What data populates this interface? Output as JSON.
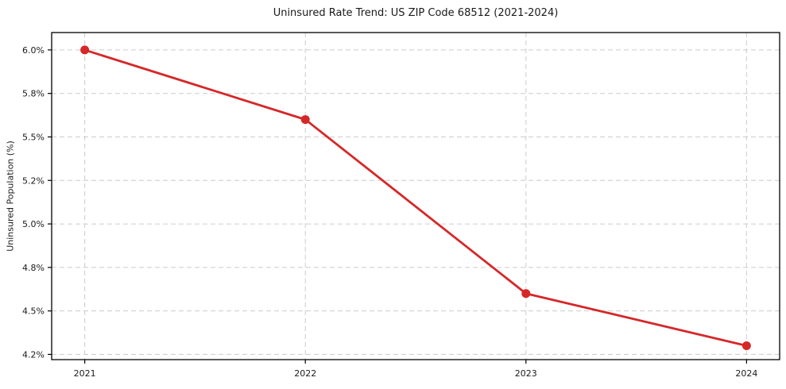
{
  "chart_data": {
    "type": "line",
    "title": "Uninsured Rate Trend: US ZIP Code 68512 (2021-2024)",
    "xlabel": "",
    "ylabel": "Uninsured Population (%)",
    "x": [
      2021,
      2022,
      2023,
      2024
    ],
    "series": [
      {
        "values": [
          6.0,
          5.6,
          4.6,
          4.3
        ]
      }
    ],
    "x_ticks": [
      {
        "value": 2021,
        "label": "2021"
      },
      {
        "value": 2022,
        "label": "2022"
      },
      {
        "value": 2023,
        "label": "2023"
      },
      {
        "value": 2024,
        "label": "2024"
      }
    ],
    "y_ticks": [
      {
        "value": 4.25,
        "label": "4.2%"
      },
      {
        "value": 4.5,
        "label": "4.5%"
      },
      {
        "value": 4.75,
        "label": "4.8%"
      },
      {
        "value": 5.0,
        "label": "5.0%"
      },
      {
        "value": 5.25,
        "label": "5.2%"
      },
      {
        "value": 5.5,
        "label": "5.5%"
      },
      {
        "value": 5.75,
        "label": "5.8%"
      },
      {
        "value": 6.0,
        "label": "6.0%"
      }
    ],
    "xlim": [
      2020.85,
      2024.15
    ],
    "ylim": [
      4.22,
      6.1
    ],
    "grid": true,
    "legend": false,
    "colors": {
      "line": "#d62728",
      "marker": "#d62728",
      "grid": "#cccccc",
      "text": "#1a1a1a",
      "spine": "#000000",
      "background": "#ffffff"
    }
  }
}
